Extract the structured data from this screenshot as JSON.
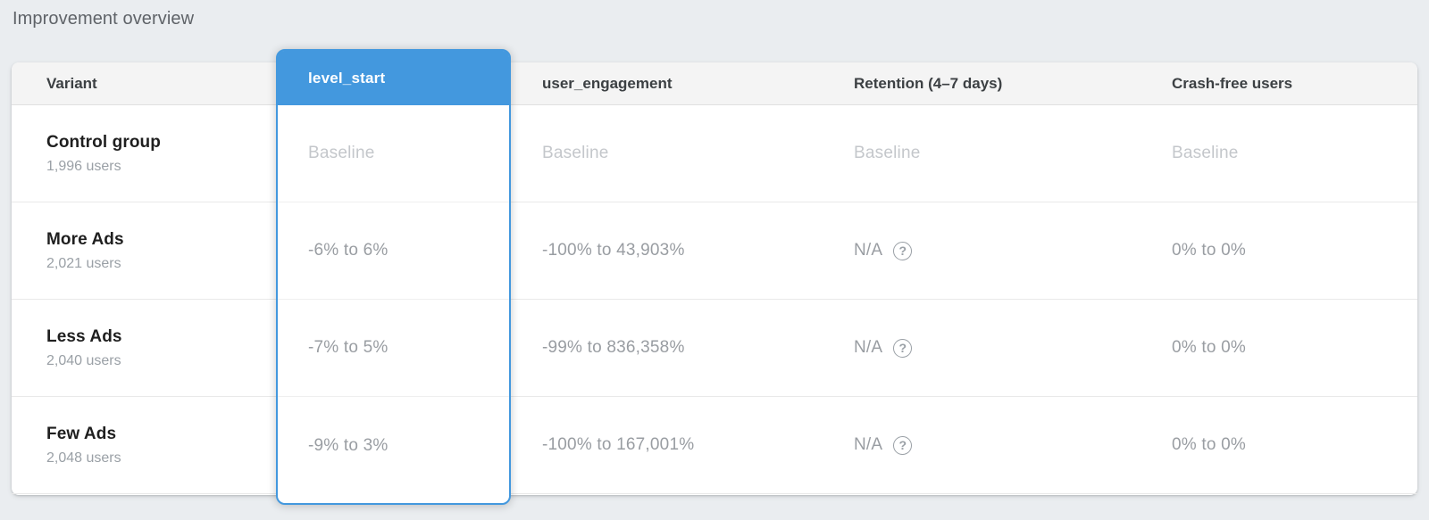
{
  "page": {
    "title": "Improvement overview",
    "background_color": "#eaedf0",
    "accent_color": "#4398de"
  },
  "table": {
    "columns": {
      "variant": "Variant",
      "level_start": "level_start",
      "user_engagement": "user_engagement",
      "retention": "Retention (4–7 days)",
      "crash_free": "Crash-free users"
    },
    "highlighted_column": "level_start",
    "help_icon_glyph": "?",
    "rows": [
      {
        "variant": "Control group",
        "users": "1,996 users",
        "level_start": "Baseline",
        "user_engagement": "Baseline",
        "retention": "Baseline",
        "crash_free": "Baseline"
      },
      {
        "variant": "More Ads",
        "users": "2,021 users",
        "level_start": "-6% to 6%",
        "user_engagement": "-100% to 43,903%",
        "retention": "N/A",
        "crash_free": "0% to 0%"
      },
      {
        "variant": "Less Ads",
        "users": "2,040 users",
        "level_start": "-7% to 5%",
        "user_engagement": "-99% to 836,358%",
        "retention": "N/A",
        "crash_free": "0% to 0%"
      },
      {
        "variant": "Few Ads",
        "users": "2,048 users",
        "level_start": "-9% to 3%",
        "user_engagement": "-100% to 167,001%",
        "retention": "N/A",
        "crash_free": "0% to 0%"
      }
    ]
  }
}
